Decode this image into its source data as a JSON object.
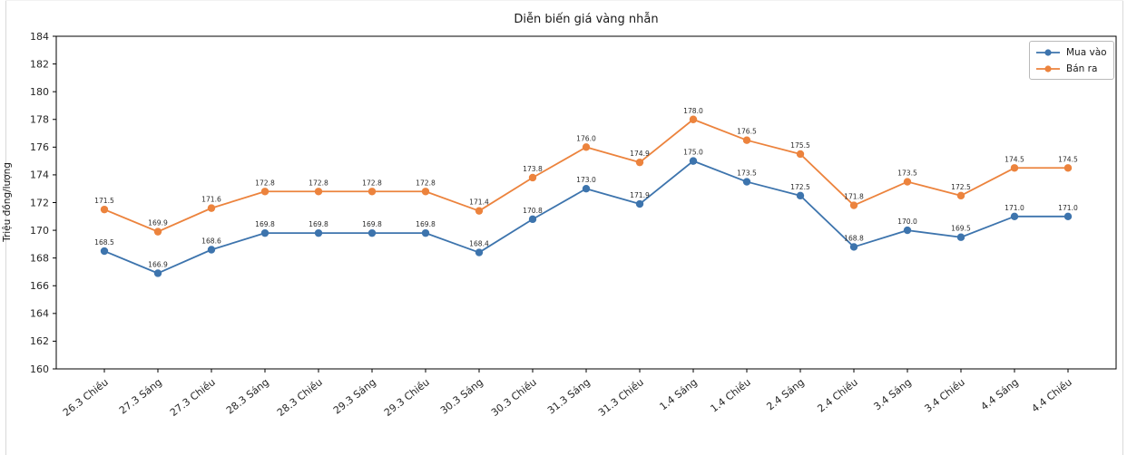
{
  "chart_data": {
    "type": "line",
    "title": "Diễn biến giá vàng nhẫn",
    "xlabel": "",
    "ylabel": "Triệu đồng/lượng",
    "ylim": [
      160,
      184
    ],
    "yticks": [
      160,
      162,
      164,
      166,
      168,
      170,
      172,
      174,
      176,
      178,
      180,
      182,
      184
    ],
    "grid": false,
    "point_labels": true,
    "legend_position": "upper right",
    "categories": [
      "26.3 Chiều",
      "27.3 Sáng",
      "27.3 Chiều",
      "28.3 Sáng",
      "28.3 Chiều",
      "29.3 Sáng",
      "29.3 Chiều",
      "30.3 Sáng",
      "30.3 Chiều",
      "31.3 Sáng",
      "31.3 Chiều",
      "1.4 Sáng",
      "1.4 Chiều",
      "2.4 Sáng",
      "2.4 Chiều",
      "3.4 Sáng",
      "3.4 Chiều",
      "4.4 Sáng",
      "4.4 Chiều"
    ],
    "series": [
      {
        "name": "Mua vào",
        "color": "#3d74ad",
        "values": [
          168.5,
          166.9,
          168.6,
          169.8,
          169.8,
          169.8,
          169.8,
          168.4,
          170.8,
          173.0,
          171.9,
          175.0,
          173.5,
          172.5,
          168.8,
          170.0,
          169.5,
          171.0,
          171.0
        ]
      },
      {
        "name": "Bán ra",
        "color": "#ec833d",
        "values": [
          171.5,
          169.9,
          171.6,
          172.8,
          172.8,
          172.8,
          172.8,
          171.4,
          173.8,
          176.0,
          174.9,
          178.0,
          176.5,
          175.5,
          171.8,
          173.5,
          172.5,
          174.5,
          174.5
        ]
      }
    ],
    "axis_color": "#000000",
    "tick_label_color": "#262626",
    "point_label_color": "#2b2b2b"
  }
}
